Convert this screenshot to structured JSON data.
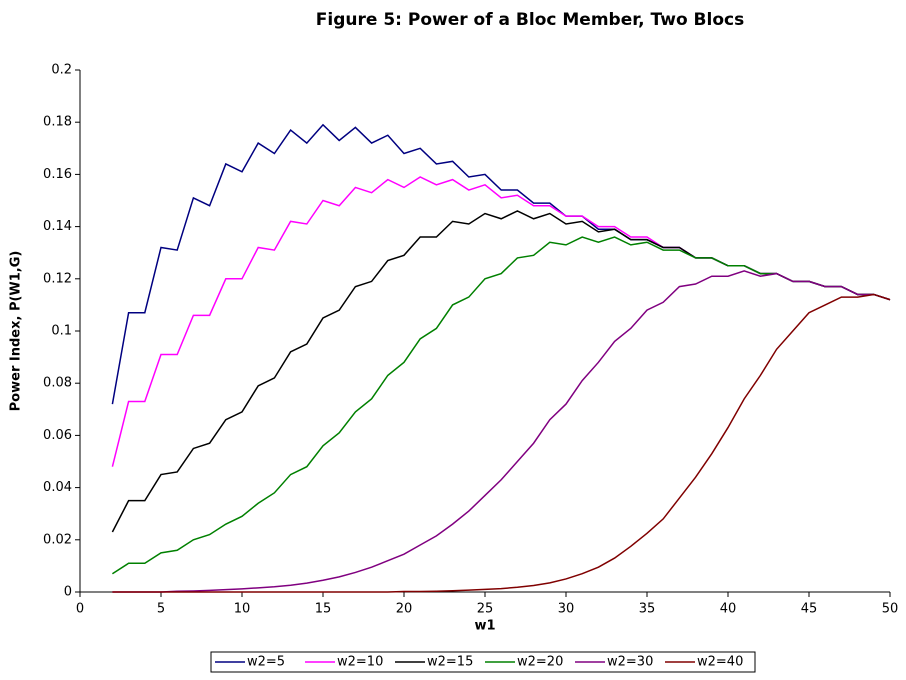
{
  "chart_data": {
    "type": "line",
    "title": "Figure 5: Power of a Bloc Member, Two Blocs",
    "x_label": "w1",
    "y_label": "Power Index, P(W1,G)",
    "x": [
      2,
      3,
      4,
      5,
      6,
      7,
      8,
      9,
      10,
      11,
      12,
      13,
      14,
      15,
      16,
      17,
      18,
      19,
      20,
      21,
      22,
      23,
      24,
      25,
      26,
      27,
      28,
      29,
      30,
      31,
      32,
      33,
      34,
      35,
      36,
      37,
      38,
      39,
      40,
      41,
      42,
      43,
      44,
      45,
      46,
      47,
      48,
      49,
      50
    ],
    "series": [
      {
        "name": "w2=5",
        "color": "#000080",
        "values": [
          0.072,
          0.107,
          0.107,
          0.132,
          0.131,
          0.151,
          0.148,
          0.164,
          0.161,
          0.172,
          0.168,
          0.177,
          0.172,
          0.179,
          0.173,
          0.178,
          0.172,
          0.175,
          0.168,
          0.17,
          0.164,
          0.165,
          0.159,
          0.16,
          0.154,
          0.154,
          0.149,
          0.149,
          0.144,
          0.144,
          0.139,
          0.139,
          0.135,
          0.135,
          0.132,
          0.132,
          0.128,
          0.128,
          0.125,
          0.125,
          0.122,
          0.122,
          0.119,
          0.119,
          0.117,
          0.117,
          0.114,
          0.114,
          0.112
        ]
      },
      {
        "name": "w2=10",
        "color": "#ff00ff",
        "values": [
          0.048,
          0.073,
          0.073,
          0.091,
          0.091,
          0.106,
          0.106,
          0.12,
          0.12,
          0.132,
          0.131,
          0.142,
          0.141,
          0.15,
          0.148,
          0.155,
          0.153,
          0.158,
          0.155,
          0.159,
          0.156,
          0.158,
          0.154,
          0.156,
          0.151,
          0.152,
          0.148,
          0.148,
          0.144,
          0.144,
          0.14,
          0.14,
          0.136,
          0.136,
          0.132,
          0.132,
          0.128,
          0.128,
          0.125,
          0.125,
          0.122,
          0.122,
          0.119,
          0.119,
          0.117,
          0.117,
          0.114,
          0.114,
          0.112
        ]
      },
      {
        "name": "w2=15",
        "color": "#000000",
        "values": [
          0.023,
          0.035,
          0.035,
          0.045,
          0.046,
          0.055,
          0.057,
          0.066,
          0.069,
          0.079,
          0.082,
          0.092,
          0.095,
          0.105,
          0.108,
          0.117,
          0.119,
          0.127,
          0.129,
          0.136,
          0.136,
          0.142,
          0.141,
          0.145,
          0.143,
          0.146,
          0.143,
          0.145,
          0.141,
          0.142,
          0.138,
          0.139,
          0.135,
          0.135,
          0.132,
          0.132,
          0.128,
          0.128,
          0.125,
          0.125,
          0.122,
          0.122,
          0.119,
          0.119,
          0.117,
          0.117,
          0.114,
          0.114,
          0.112
        ]
      },
      {
        "name": "w2=20",
        "color": "#008000",
        "values": [
          0.007,
          0.011,
          0.011,
          0.015,
          0.016,
          0.02,
          0.022,
          0.026,
          0.029,
          0.034,
          0.038,
          0.045,
          0.048,
          0.056,
          0.061,
          0.069,
          0.074,
          0.083,
          0.088,
          0.097,
          0.101,
          0.11,
          0.113,
          0.12,
          0.122,
          0.128,
          0.129,
          0.134,
          0.133,
          0.136,
          0.134,
          0.136,
          0.133,
          0.134,
          0.131,
          0.131,
          0.128,
          0.128,
          0.125,
          0.125,
          0.122,
          0.122,
          0.119,
          0.119,
          0.117,
          0.117,
          0.114,
          0.114,
          0.112
        ]
      },
      {
        "name": "w2=30",
        "color": "#800080",
        "values": [
          0,
          0,
          0,
          0,
          0.0003,
          0.0004,
          0.0006,
          0.0009,
          0.0012,
          0.0016,
          0.002,
          0.0026,
          0.0034,
          0.0045,
          0.0058,
          0.0075,
          0.0095,
          0.012,
          0.0145,
          0.018,
          0.0215,
          0.026,
          0.031,
          0.037,
          0.043,
          0.05,
          0.057,
          0.066,
          0.072,
          0.081,
          0.088,
          0.096,
          0.101,
          0.108,
          0.111,
          0.117,
          0.118,
          0.121,
          0.121,
          0.123,
          0.121,
          0.122,
          0.119,
          0.119,
          0.117,
          0.117,
          0.114,
          0.114,
          0.112
        ]
      },
      {
        "name": "w2=40",
        "color": "#800000",
        "values": [
          0,
          0,
          0,
          0,
          0,
          0,
          0,
          0,
          0,
          0,
          0,
          0,
          0,
          0,
          0,
          0,
          0,
          0,
          0.0002,
          0.0002,
          0.0003,
          0.0005,
          0.0007,
          0.001,
          0.0013,
          0.0018,
          0.0025,
          0.0035,
          0.005,
          0.007,
          0.0095,
          0.013,
          0.0175,
          0.0225,
          0.028,
          0.036,
          0.044,
          0.053,
          0.063,
          0.074,
          0.083,
          0.093,
          0.1,
          0.107,
          0.11,
          0.113,
          0.113,
          0.114,
          0.112
        ]
      }
    ],
    "xlim": [
      0,
      50
    ],
    "xticks": [
      0,
      5,
      10,
      15,
      20,
      25,
      30,
      35,
      40,
      45,
      50
    ],
    "ylim": [
      0,
      0.2
    ],
    "yticks": [
      0,
      0.02,
      0.04,
      0.06,
      0.08,
      0.1,
      0.12,
      0.14,
      0.16,
      0.18,
      0.2
    ],
    "grid": false,
    "legend": "bottom"
  }
}
